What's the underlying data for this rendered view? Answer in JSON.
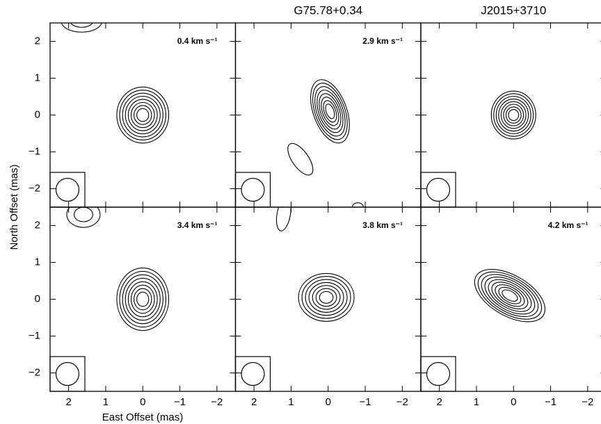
{
  "figure": {
    "xlabel": "East Offset (mas)",
    "ylabel": "North Offset (mas)"
  },
  "chart_data": [
    {
      "type": "contour",
      "annotation": "0.4 km s⁻¹",
      "xlim": [
        2.5,
        -2.5
      ],
      "ylim": [
        -2.5,
        2.5
      ],
      "xticks": [
        2,
        1,
        0,
        {
          "value": -1,
          "label": "−1"
        },
        {
          "value": -2,
          "label": "−2"
        }
      ],
      "yticks": [
        {
          "value": -2,
          "label": "−2"
        },
        {
          "value": -1,
          "label": "−1"
        },
        0,
        1,
        2
      ]
    },
    {
      "type": "contour",
      "title": "G75.78+0.34",
      "annotation": "2.9 km s⁻¹",
      "xlim": [
        2.5,
        -2.5
      ],
      "ylim": [
        -2.5,
        2.5
      ],
      "xticks": [
        2,
        1,
        0,
        {
          "value": -1,
          "label": "−1"
        },
        {
          "value": -2,
          "label": "−2"
        }
      ],
      "yticks": [
        {
          "value": -2,
          "label": "−2"
        },
        {
          "value": -1,
          "label": "−1"
        },
        0,
        1,
        2
      ]
    },
    {
      "type": "contour",
      "title": "J2015+3710",
      "xlim": [
        2.5,
        -2.5
      ],
      "ylim": [
        -2.5,
        2.5
      ],
      "xticks": [
        2,
        1,
        0,
        {
          "value": -1,
          "label": "−1"
        },
        {
          "value": -2,
          "label": "−2"
        }
      ],
      "yticks": [
        {
          "value": -2,
          "label": "−2"
        },
        {
          "value": -1,
          "label": "−1"
        },
        0,
        1,
        2
      ]
    },
    {
      "type": "contour",
      "annotation": "3.4 km s⁻¹",
      "xlim": [
        2.5,
        -2.5
      ],
      "ylim": [
        -2.5,
        2.5
      ],
      "xticks": [
        2,
        1,
        0,
        {
          "value": -1,
          "label": "−1"
        },
        {
          "value": -2,
          "label": "−2"
        }
      ],
      "yticks": [
        {
          "value": -2,
          "label": "−2"
        },
        {
          "value": -1,
          "label": "−1"
        },
        0,
        1,
        2
      ]
    },
    {
      "type": "contour",
      "annotation": "3.8 km s⁻¹",
      "xlim": [
        2.5,
        -2.5
      ],
      "ylim": [
        -2.5,
        2.5
      ],
      "xticks": [
        2,
        1,
        0,
        {
          "value": -1,
          "label": "−1"
        },
        {
          "value": -2,
          "label": "−2"
        }
      ],
      "yticks": [
        {
          "value": -2,
          "label": "−2"
        },
        {
          "value": -1,
          "label": "−1"
        },
        0,
        1,
        2
      ]
    },
    {
      "type": "contour",
      "annotation": "4.2 km s⁻¹",
      "xlim": [
        2.5,
        -2.5
      ],
      "ylim": [
        -2.5,
        2.5
      ],
      "xticks": [
        2,
        1,
        0,
        {
          "value": -1,
          "label": "−1"
        },
        {
          "value": -2,
          "label": "−2"
        }
      ],
      "yticks": [
        {
          "value": -2,
          "label": "−2"
        },
        {
          "value": -1,
          "label": "−1"
        },
        0,
        1,
        2
      ]
    }
  ]
}
